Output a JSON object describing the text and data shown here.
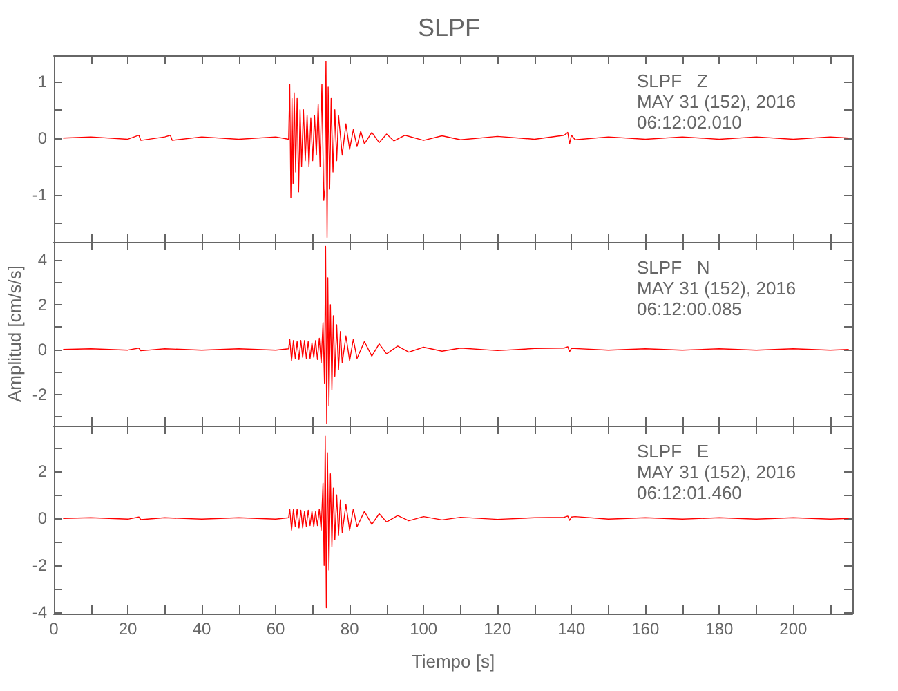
{
  "chart_data": [
    {
      "type": "line",
      "title": "SLPF",
      "annotations": [
        "SLPF   Z",
        "MAY 31 (152), 2016",
        "06:12:02.010"
      ],
      "tick_labels": "y",
      "marker": "none",
      "grid": false,
      "xlim": [
        0,
        216
      ],
      "xticks": [
        0,
        {
          "value": 10,
          "label": null
        },
        20,
        {
          "value": 30,
          "label": null
        },
        40,
        {
          "value": 50,
          "label": null
        },
        60,
        {
          "value": 70,
          "label": null
        },
        80,
        {
          "value": 90,
          "label": null
        },
        100,
        {
          "value": 110,
          "label": null
        },
        120,
        {
          "value": 130,
          "label": null
        },
        140,
        {
          "value": 150,
          "label": null
        },
        160,
        {
          "value": 170,
          "label": null
        },
        180,
        {
          "value": 190,
          "label": null
        },
        200,
        {
          "value": 210,
          "label": null
        }
      ],
      "ylim": [
        -1.83,
        1.46
      ],
      "yticks": [
        {
          "value": -1.5,
          "label": null
        },
        -1,
        {
          "value": -0.5,
          "label": null
        },
        0,
        {
          "value": 0.5,
          "label": null
        },
        1
      ],
      "x": [
        2.5,
        10,
        20,
        23,
        23.5,
        30,
        31.5,
        32,
        40,
        50,
        60,
        63.5,
        63.8,
        64.1,
        64.4,
        64.7,
        65,
        65.4,
        65.8,
        66.2,
        66.6,
        67,
        67.5,
        68,
        68.5,
        69,
        69.5,
        70,
        70.5,
        71,
        71.5,
        72,
        72.5,
        73,
        73.3,
        73.6,
        73.9,
        74.2,
        74.6,
        75,
        75.5,
        76,
        76.5,
        77,
        78,
        79,
        80,
        81,
        82,
        83,
        84,
        86,
        88,
        90,
        92,
        95,
        100,
        105,
        110,
        120,
        130,
        138,
        139,
        139.5,
        140,
        141,
        150,
        160,
        170,
        180,
        190,
        200,
        210,
        215
      ],
      "series": [
        {
          "color": "#ff0000",
          "values": [
            0,
            0.02,
            -0.02,
            0.05,
            -0.04,
            0.02,
            0.05,
            -0.04,
            0.02,
            -0.02,
            0.02,
            -0.02,
            0.95,
            -1.05,
            0.7,
            -0.8,
            0.8,
            -0.6,
            0.7,
            -0.95,
            0.5,
            -0.5,
            0.5,
            -0.4,
            0.4,
            -0.5,
            0.35,
            -0.4,
            0.4,
            -0.3,
            0.6,
            -0.5,
            0.95,
            -1.1,
            -0.9,
            1.35,
            -1.75,
            0.9,
            -0.9,
            0.7,
            -0.6,
            0.5,
            -0.4,
            0.4,
            -0.3,
            0.25,
            -0.2,
            0.15,
            -0.15,
            0.12,
            -0.1,
            0.1,
            -0.08,
            0.07,
            -0.05,
            0.05,
            -0.04,
            0.04,
            -0.03,
            0.03,
            -0.02,
            0.05,
            0.1,
            -0.1,
            0.05,
            -0.03,
            0.02,
            -0.02,
            0.02,
            -0.02,
            0.02,
            -0.02,
            0.02,
            0
          ]
        }
      ]
    },
    {
      "type": "line",
      "ylabel": "Amplitud [cm/s/s]",
      "annotations": [
        "SLPF   N",
        "MAY 31 (152), 2016",
        "06:12:00.085"
      ],
      "tick_labels": "y",
      "marker": "none",
      "grid": false,
      "xlim": [
        0,
        216
      ],
      "xticks": [
        0,
        {
          "value": 10,
          "label": null
        },
        20,
        {
          "value": 30,
          "label": null
        },
        40,
        {
          "value": 50,
          "label": null
        },
        60,
        {
          "value": 70,
          "label": null
        },
        80,
        {
          "value": 90,
          "label": null
        },
        100,
        {
          "value": 110,
          "label": null
        },
        120,
        {
          "value": 130,
          "label": null
        },
        140,
        {
          "value": 150,
          "label": null
        },
        160,
        {
          "value": 170,
          "label": null
        },
        180,
        {
          "value": 190,
          "label": null
        },
        200,
        {
          "value": 210,
          "label": null
        }
      ],
      "ylim": [
        -3.4,
        4.8
      ],
      "yticks": [
        {
          "value": -3,
          "label": null
        },
        -2,
        {
          "value": -1,
          "label": null
        },
        0,
        {
          "value": 1,
          "label": null
        },
        2,
        {
          "value": 3,
          "label": null
        },
        4
      ],
      "x": [
        2.5,
        10,
        20,
        23,
        23.5,
        30,
        40,
        50,
        60,
        63.5,
        63.8,
        64.3,
        64.8,
        65.3,
        65.8,
        66.3,
        66.8,
        67.3,
        67.8,
        68.3,
        68.8,
        69.3,
        69.8,
        70.3,
        70.8,
        71.3,
        71.8,
        72.3,
        72.8,
        73.2,
        73.5,
        73.8,
        74.1,
        74.4,
        74.8,
        75.2,
        75.6,
        76,
        76.5,
        77,
        77.5,
        78,
        79,
        80,
        81,
        82,
        84,
        86,
        88,
        90,
        93,
        96,
        100,
        105,
        110,
        120,
        130,
        138,
        139,
        139.5,
        140,
        150,
        160,
        170,
        180,
        190,
        200,
        210,
        215
      ],
      "series": [
        {
          "color": "#ff0000",
          "values": [
            0,
            0.03,
            -0.03,
            0.06,
            -0.06,
            0.03,
            -0.03,
            0.03,
            -0.03,
            0.03,
            0.45,
            -0.5,
            0.4,
            -0.4,
            0.35,
            -0.45,
            0.4,
            -0.35,
            0.4,
            -0.4,
            0.35,
            -0.4,
            0.3,
            -0.35,
            0.4,
            -0.45,
            0.5,
            -0.6,
            1.2,
            -1.5,
            4.6,
            -3.3,
            3.2,
            -2.5,
            2,
            -1.8,
            1.5,
            -1.2,
            1.1,
            -0.9,
            0.8,
            -0.6,
            0.6,
            -0.5,
            0.45,
            -0.4,
            0.35,
            -0.3,
            0.25,
            -0.2,
            0.15,
            -0.12,
            0.1,
            -0.08,
            0.06,
            -0.05,
            0.04,
            0.06,
            0.12,
            -0.1,
            0.05,
            -0.03,
            0.03,
            -0.03,
            0.03,
            -0.03,
            0.03,
            -0.03,
            0
          ]
        }
      ]
    },
    {
      "type": "line",
      "xlabel": "Tiempo [s]",
      "annotations": [
        "SLPF   E",
        "MAY 31 (152), 2016",
        "06:12:01.460"
      ],
      "marker": "none",
      "grid": false,
      "xlim": [
        0,
        216
      ],
      "xticks": [
        0,
        {
          "value": 10,
          "label": null
        },
        20,
        {
          "value": 30,
          "label": null
        },
        40,
        {
          "value": 50,
          "label": null
        },
        60,
        {
          "value": 70,
          "label": null
        },
        80,
        {
          "value": 90,
          "label": null
        },
        100,
        {
          "value": 110,
          "label": null
        },
        120,
        {
          "value": 130,
          "label": null
        },
        140,
        {
          "value": 150,
          "label": null
        },
        160,
        {
          "value": 170,
          "label": null
        },
        180,
        {
          "value": 190,
          "label": null
        },
        200,
        {
          "value": 210,
          "label": null
        }
      ],
      "ylim": [
        -4.05,
        3.95
      ],
      "yticks": [
        -4,
        {
          "value": -3,
          "label": null
        },
        -2,
        {
          "value": -1,
          "label": null
        },
        0,
        {
          "value": 1,
          "label": null
        },
        2,
        {
          "value": 3,
          "label": null
        }
      ],
      "x": [
        2.5,
        10,
        20,
        23,
        23.5,
        30,
        40,
        50,
        60,
        63.5,
        63.8,
        64.3,
        64.8,
        65.3,
        65.8,
        66.3,
        66.8,
        67.3,
        67.8,
        68.3,
        68.8,
        69.3,
        69.8,
        70.3,
        70.8,
        71.3,
        71.8,
        72.3,
        72.8,
        73.1,
        73.4,
        73.7,
        74,
        74.4,
        74.8,
        75.2,
        75.6,
        76,
        76.5,
        77,
        77.5,
        78,
        79,
        80,
        81,
        82,
        84,
        86,
        88,
        90,
        93,
        96,
        100,
        105,
        110,
        120,
        130,
        138,
        139,
        139.5,
        140,
        141,
        150,
        160,
        170,
        180,
        190,
        200,
        210,
        215
      ],
      "series": [
        {
          "color": "#ff0000",
          "values": [
            0,
            0.03,
            -0.03,
            0.06,
            -0.05,
            0.03,
            -0.03,
            0.03,
            -0.03,
            0.03,
            0.4,
            -0.5,
            0.4,
            -0.35,
            0.4,
            -0.4,
            0.35,
            -0.4,
            0.3,
            -0.35,
            0.35,
            -0.3,
            0.3,
            -0.35,
            0.3,
            -0.3,
            0.4,
            -0.5,
            1.5,
            -2,
            3.5,
            -3.8,
            2.8,
            -2.2,
            1.9,
            -1.2,
            1.3,
            -0.9,
            1,
            -0.7,
            0.8,
            -0.6,
            0.6,
            -0.5,
            0.4,
            -0.35,
            0.3,
            -0.25,
            0.2,
            -0.15,
            0.12,
            -0.1,
            0.08,
            -0.06,
            0.05,
            -0.04,
            0.03,
            0.05,
            0.1,
            -0.08,
            0.06,
            0.08,
            -0.03,
            0.03,
            -0.03,
            0.03,
            -0.03,
            0.03,
            -0.03,
            0
          ]
        }
      ]
    }
  ]
}
